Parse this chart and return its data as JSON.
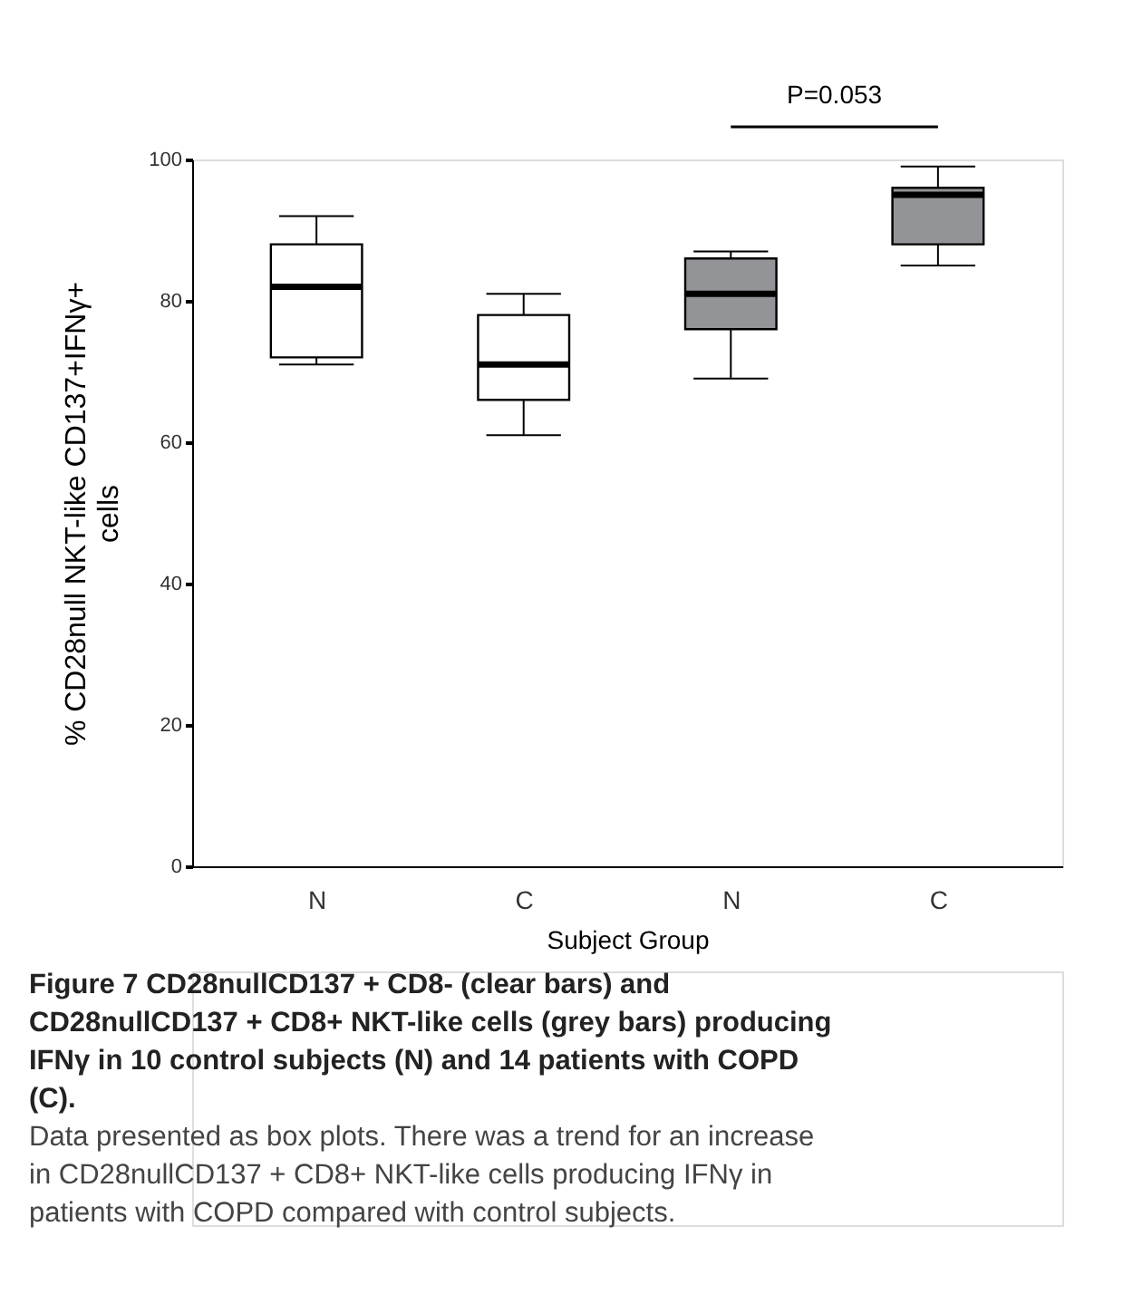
{
  "chart_data": {
    "type": "box",
    "categories": [
      "N",
      "C",
      "N",
      "C"
    ],
    "boxes": [
      {
        "low": 71,
        "q1": 72,
        "median": 82,
        "q3": 88,
        "high": 92
      },
      {
        "low": 61,
        "q1": 66,
        "median": 71,
        "q3": 78,
        "high": 81
      },
      {
        "low": 69,
        "q1": 76,
        "median": 81,
        "q3": 86,
        "high": 87
      },
      {
        "low": 85,
        "q1": 88,
        "median": 95,
        "q3": 96,
        "high": 99
      }
    ],
    "colors": [
      "#ffffff",
      "#ffffff",
      "#929497",
      "#929497"
    ],
    "xlabel": "Subject Group",
    "ylabel": "% CD28null NKT-like CD137+IFNγ+\ncells",
    "ylim": [
      0,
      100
    ],
    "yticks": [
      0,
      20,
      40,
      60,
      80,
      100
    ],
    "grid": false,
    "annotations": [
      "P=0.053",
      "Figure 7 CD28nullCD137 + CD8- (clear bars) and CD28nullCD137 + CD8+ NKT-like cells (grey bars) producing IFNγ in 10 control subjects (N) and 14 patients with COPD (C).",
      "Data presented as box plots. There was a trend for an increase in CD28nullCD137 + CD8+ NKT-like cells producing IFNγ in patients with COPD compared with control subjects."
    ]
  }
}
